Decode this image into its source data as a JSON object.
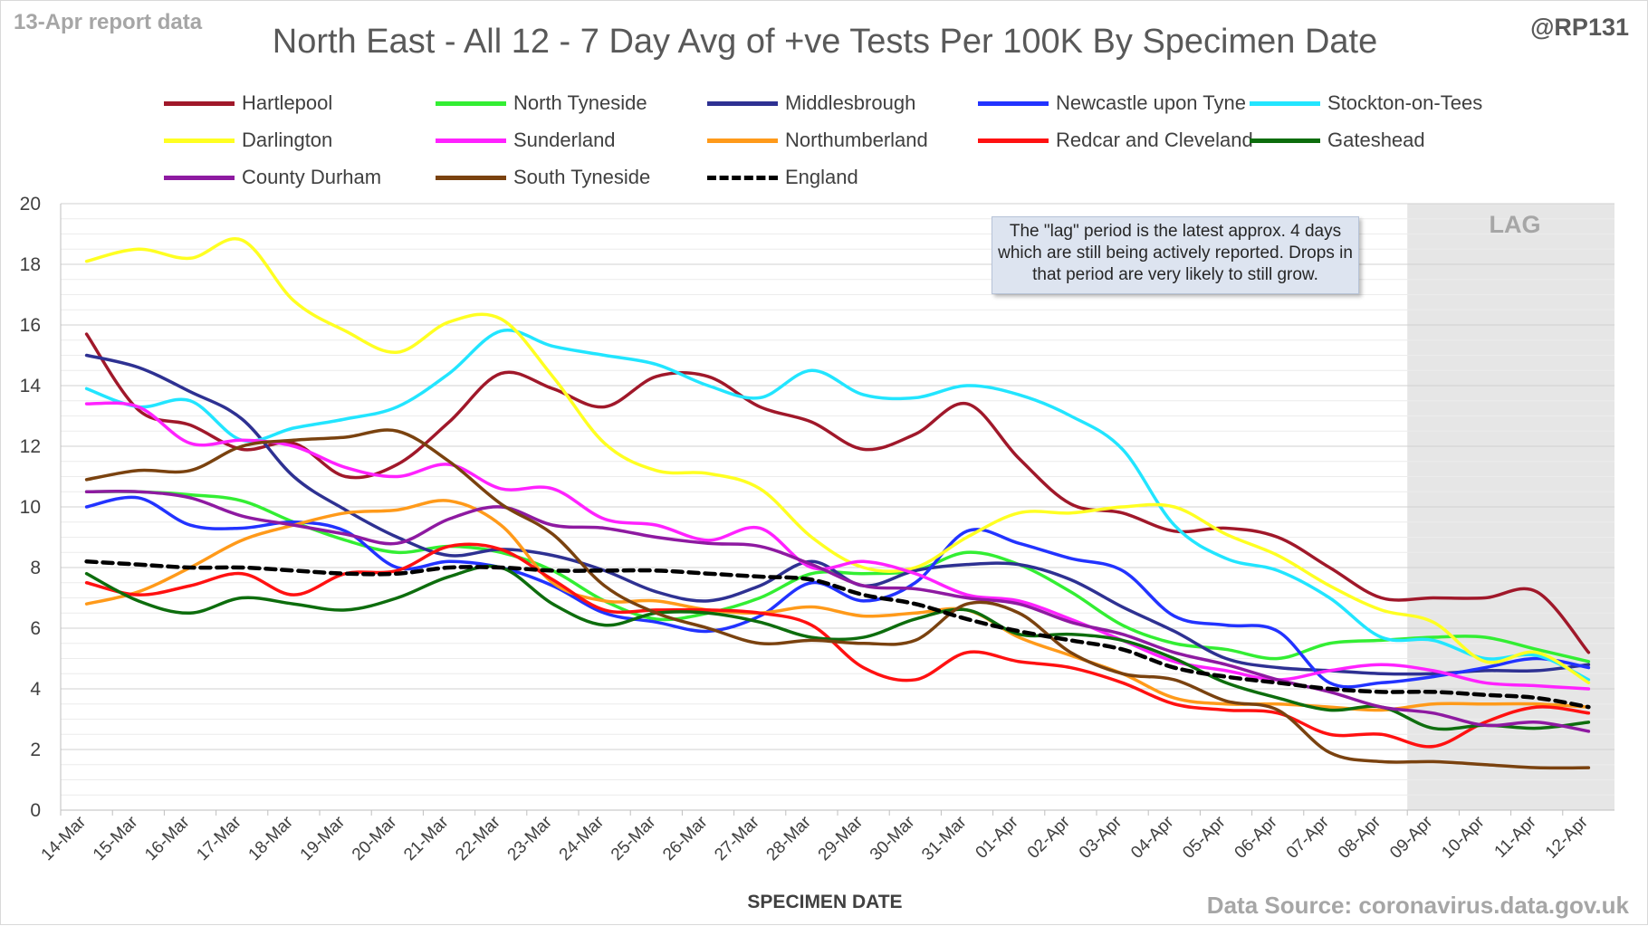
{
  "header": {
    "report_label": "13-Apr report data",
    "handle": "@RP131"
  },
  "footer": {
    "source": "Data Source: coronavirus.data.gov.uk"
  },
  "callout": {
    "text": "The \"lag\" period is the latest approx. 4 days which are still being actively reported. Drops in that period are very likely to still grow."
  },
  "lag": {
    "label": "LAG",
    "start": "09-Apr",
    "end": "12-Apr",
    "fill": "#e6e6e6"
  },
  "chart_data": {
    "type": "line",
    "title": "North East - All 12 - 7 Day Avg of +ve Tests Per 100K By Specimen Date",
    "xlabel": "SPECIMEN DATE",
    "ylabel": "",
    "ylim": [
      0,
      20
    ],
    "y_ticks": [
      0,
      2,
      4,
      6,
      8,
      10,
      12,
      14,
      16,
      18,
      20
    ],
    "grid": true,
    "legend_position": "top",
    "categories": [
      "14-Mar",
      "15-Mar",
      "16-Mar",
      "17-Mar",
      "18-Mar",
      "19-Mar",
      "20-Mar",
      "21-Mar",
      "22-Mar",
      "23-Mar",
      "24-Mar",
      "25-Mar",
      "26-Mar",
      "27-Mar",
      "28-Mar",
      "29-Mar",
      "30-Mar",
      "31-Mar",
      "01-Apr",
      "02-Apr",
      "03-Apr",
      "04-Apr",
      "05-Apr",
      "06-Apr",
      "07-Apr",
      "08-Apr",
      "09-Apr",
      "10-Apr",
      "11-Apr",
      "12-Apr"
    ],
    "series": [
      {
        "name": "Hartlepool",
        "color": "#a0182a",
        "dashed": false,
        "values": [
          15.7,
          13.2,
          12.7,
          11.9,
          12.1,
          11.0,
          11.4,
          12.8,
          14.4,
          13.9,
          13.3,
          14.3,
          14.3,
          13.3,
          12.8,
          11.9,
          12.4,
          13.4,
          11.6,
          10.1,
          9.8,
          9.2,
          9.3,
          9.0,
          8.0,
          7.0,
          7.0,
          7.0,
          7.2,
          5.2
        ]
      },
      {
        "name": "North Tyneside",
        "color": "#33ee33",
        "dashed": false,
        "values": [
          10.5,
          10.5,
          10.4,
          10.2,
          9.5,
          8.9,
          8.5,
          8.7,
          8.5,
          7.9,
          6.9,
          6.3,
          6.5,
          7.0,
          7.8,
          7.8,
          7.9,
          8.5,
          8.1,
          7.2,
          6.1,
          5.5,
          5.3,
          5.0,
          5.5,
          5.6,
          5.7,
          5.7,
          5.3,
          4.9
        ]
      },
      {
        "name": "Middlesbrough",
        "color": "#2e3192",
        "dashed": false,
        "values": [
          15.0,
          14.6,
          13.8,
          12.9,
          11.0,
          9.9,
          9.0,
          8.4,
          8.6,
          8.4,
          7.9,
          7.2,
          6.9,
          7.4,
          8.2,
          7.4,
          7.9,
          8.1,
          8.1,
          7.6,
          6.7,
          5.9,
          5.0,
          4.7,
          4.6,
          4.5,
          4.5,
          4.6,
          4.6,
          4.8
        ]
      },
      {
        "name": "Newcastle upon Tyne",
        "color": "#2233ff",
        "dashed": false,
        "values": [
          10.0,
          10.3,
          9.4,
          9.3,
          9.5,
          9.2,
          8.0,
          8.2,
          8.0,
          7.4,
          6.5,
          6.2,
          5.9,
          6.4,
          7.5,
          6.9,
          7.5,
          9.2,
          8.8,
          8.3,
          7.9,
          6.4,
          6.1,
          5.9,
          4.2,
          4.2,
          4.4,
          4.7,
          5.0,
          4.7
        ]
      },
      {
        "name": "Stockton-on-Tees",
        "color": "#22e5ff",
        "dashed": false,
        "values": [
          13.9,
          13.3,
          13.5,
          12.2,
          12.6,
          12.9,
          13.3,
          14.4,
          15.8,
          15.3,
          15.0,
          14.7,
          14.0,
          13.6,
          14.5,
          13.7,
          13.6,
          14.0,
          13.7,
          13.0,
          11.9,
          9.4,
          8.3,
          7.9,
          7.0,
          5.7,
          5.6,
          5.0,
          5.1,
          4.3
        ]
      },
      {
        "name": "Darlington",
        "color": "#ffff22",
        "dashed": false,
        "values": [
          18.1,
          18.5,
          18.2,
          18.8,
          16.8,
          15.8,
          15.1,
          16.1,
          16.2,
          14.3,
          12.1,
          11.2,
          11.1,
          10.6,
          9.0,
          8.0,
          8.0,
          9.0,
          9.8,
          9.8,
          10.0,
          10.0,
          9.1,
          8.4,
          7.4,
          6.6,
          6.2,
          4.9,
          5.2,
          4.2
        ]
      },
      {
        "name": "Sunderland",
        "color": "#ff22ff",
        "dashed": false,
        "values": [
          13.4,
          13.3,
          12.1,
          12.2,
          12.0,
          11.3,
          11.0,
          11.4,
          10.6,
          10.6,
          9.6,
          9.4,
          8.9,
          9.3,
          8.0,
          8.2,
          7.8,
          7.1,
          6.9,
          6.3,
          5.6,
          4.9,
          4.6,
          4.3,
          4.6,
          4.8,
          4.6,
          4.2,
          4.1,
          4.0
        ]
      },
      {
        "name": "Northumberland",
        "color": "#ff9a1a",
        "dashed": false,
        "values": [
          6.8,
          7.2,
          8.0,
          8.9,
          9.4,
          9.8,
          9.9,
          10.2,
          9.4,
          7.5,
          6.9,
          6.9,
          6.6,
          6.5,
          6.7,
          6.4,
          6.5,
          6.6,
          5.7,
          5.1,
          4.5,
          3.7,
          3.5,
          3.5,
          3.4,
          3.3,
          3.5,
          3.5,
          3.5,
          3.4
        ]
      },
      {
        "name": "Redcar and Cleveland",
        "color": "#ff1111",
        "dashed": false,
        "values": [
          7.5,
          7.1,
          7.4,
          7.8,
          7.1,
          7.8,
          7.9,
          8.7,
          8.6,
          7.6,
          6.6,
          6.6,
          6.6,
          6.5,
          6.1,
          4.7,
          4.3,
          5.2,
          4.9,
          4.7,
          4.2,
          3.5,
          3.3,
          3.2,
          2.5,
          2.5,
          2.1,
          2.9,
          3.4,
          3.2
        ]
      },
      {
        "name": "Gateshead",
        "color": "#0d6d0d",
        "dashed": false,
        "values": [
          7.8,
          6.9,
          6.5,
          7.0,
          6.8,
          6.6,
          7.0,
          7.7,
          8.0,
          6.8,
          6.1,
          6.5,
          6.5,
          6.2,
          5.7,
          5.7,
          6.3,
          6.6,
          5.8,
          5.8,
          5.6,
          5.0,
          4.2,
          3.7,
          3.3,
          3.4,
          2.7,
          2.8,
          2.7,
          2.9
        ]
      },
      {
        "name": "County Durham",
        "color": "#8e1aa1",
        "dashed": false,
        "values": [
          10.5,
          10.5,
          10.3,
          9.7,
          9.4,
          9.1,
          8.8,
          9.6,
          10.0,
          9.4,
          9.3,
          9.0,
          8.8,
          8.7,
          8.1,
          7.4,
          7.3,
          7.0,
          6.8,
          6.2,
          5.8,
          5.2,
          4.8,
          4.3,
          3.9,
          3.4,
          3.2,
          2.8,
          2.9,
          2.6
        ]
      },
      {
        "name": "South Tyneside",
        "color": "#7a420f",
        "dashed": false,
        "values": [
          10.9,
          11.2,
          11.2,
          12.0,
          12.2,
          12.3,
          12.5,
          11.5,
          10.1,
          9.1,
          7.4,
          6.5,
          6.0,
          5.5,
          5.6,
          5.5,
          5.6,
          6.8,
          6.5,
          5.2,
          4.5,
          4.3,
          3.6,
          3.3,
          1.9,
          1.6,
          1.6,
          1.5,
          1.4,
          1.4
        ]
      },
      {
        "name": "England",
        "color": "#000000",
        "dashed": true,
        "values": [
          8.2,
          8.1,
          8.0,
          8.0,
          7.9,
          7.8,
          7.8,
          8.0,
          8.0,
          7.9,
          7.9,
          7.9,
          7.8,
          7.7,
          7.6,
          7.1,
          6.8,
          6.3,
          5.9,
          5.6,
          5.3,
          4.7,
          4.4,
          4.2,
          4.0,
          3.9,
          3.9,
          3.8,
          3.7,
          3.4
        ]
      }
    ]
  }
}
